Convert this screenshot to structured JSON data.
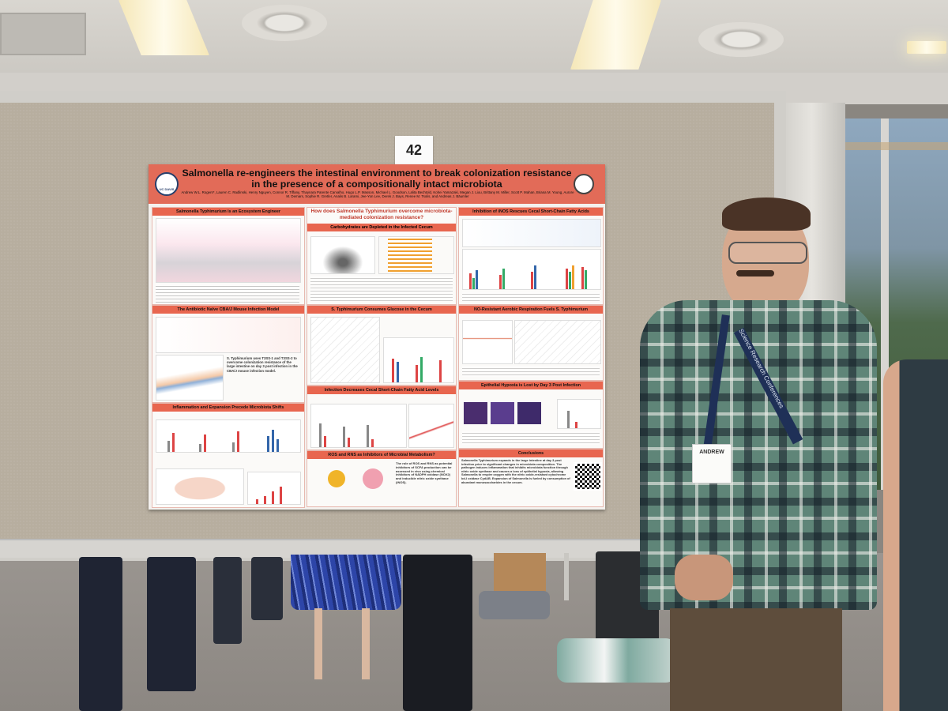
{
  "board": {
    "number": "42"
  },
  "poster": {
    "title_line1": "Salmonella re-engineers the intestinal environment to break colonization resistance",
    "title_line2": "in the presence of a compositionally intact microbiota",
    "authors": "Andrew W.L. Rogers*, Lauren C. Radlinski, Henry Nguyen, Connor R. Tiffany, Thaynara Parente Carvalho, Hugo L.P. Masson, Michael L. Goodson, Lalita Bechtold, Kohei Yamazaki, Megan J. Liou, Brittany M. Miller, Scott P. Mahan, Briana M. Young, Aurore M. Demars, Sophie R. Gretler, Analis B. Larami, Jee-Yon Lee, Derek J. Bays, Renee M. Tsolis, and Andreas J. Bäumler",
    "logo_text": "UC DAVIS",
    "sections": {
      "s1": "Salmonella Typhimurium is an Ecosystem Engineer",
      "s2": "The Antibiotic Naïve CBA/J Mouse Infection Model",
      "s3": "Inflammation and Expansion Precede Microbiota Shifts",
      "s4": "How does Salmonella Typhimurium overcome microbiota-mediated colonization resistance?",
      "s5": "Carbohydrates are Depleted in the Infected Cecum",
      "s6": "S. Typhimurium Consumes Glucose in the Cecum",
      "s7": "Infection Decreases Cecal Short-Chain Fatty Acid Levels",
      "s8": "ROS and RNS as Inhibitors of Microbial Metabolism?",
      "s9": "Inhibition of iNOS Rescues Cecal Short-Chain Fatty Acids",
      "s10": "NO-Resistant Aerobic Respiration Fuels S. Typhimurium",
      "s11": "Epithelial Hypoxia is Lost by Day 3 Post Infection",
      "s12": "Conclusions"
    },
    "captions": {
      "s2_text": "S. Typhimurium uses T3SS-1 and T3SS-2 to overcome colonization resistance of the large intestine on day 3 post infection in the CBA/J mouse infection model.",
      "s8_text": "The role of ROS and RNS as potential inhibitors of SCFA production can be assessed in vivo using chemical inhibitors of NADPH oxidase (NOX2) and inducible nitric oxide synthase (iNOS).",
      "s12_text": "Salmonella Typhimurium expands in the large intestine at day 3 post infection prior to significant changes in microbiota composition. The pathogen induces inflammation that inhibits microbiota function through nitric oxide synthase and causes a loss of epithelial hypoxia, allowing Salmonella to respire oxygen with the nitric oxide-resistant cytochrome bd-I oxidase CydAB. Expansion of Salmonella is fueled by consumption of abundant monosaccharides in the cecum."
    }
  },
  "person": {
    "badge_name": "ANDREW",
    "lanyard_text": "Science Research Conferences"
  }
}
